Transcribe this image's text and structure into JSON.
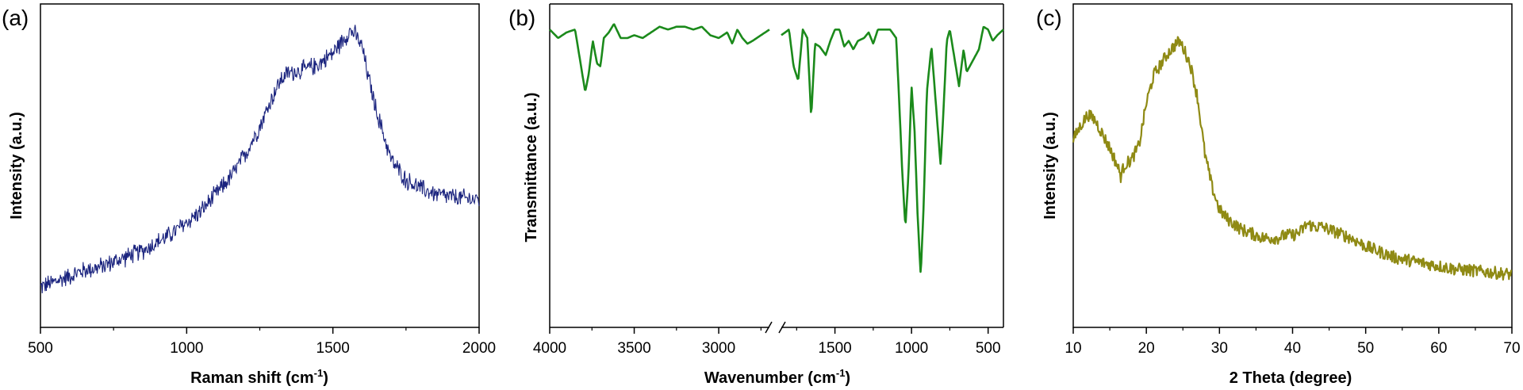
{
  "figure": {
    "background": "#ffffff",
    "panels": [
      "(a)",
      "(b)",
      "(c)"
    ]
  },
  "chart_data": [
    {
      "type": "line",
      "panel_label": "(a)",
      "title": "",
      "xlabel": "Raman shift (cm",
      "xlabel_sup": "-1",
      "xlabel_end": ")",
      "ylabel": "Intensity (a.u.)",
      "xlim": [
        500,
        2000
      ],
      "ylim": [
        0,
        10
      ],
      "x_ticks": [
        500,
        1000,
        1500,
        2000
      ],
      "x_tick_labels": [
        "500",
        "1000",
        "1500",
        "2000"
      ],
      "y_tick_labels": [],
      "grid": false,
      "legend": "none",
      "noise": 0.28,
      "series": [
        {
          "color": "#1a237e",
          "x": [
            500,
            550,
            600,
            650,
            700,
            750,
            800,
            850,
            900,
            950,
            1000,
            1050,
            1100,
            1150,
            1200,
            1250,
            1300,
            1325,
            1350,
            1400,
            1450,
            1500,
            1530,
            1560,
            1580,
            1600,
            1620,
            1650,
            1700,
            1750,
            1800,
            1850,
            1900,
            1950,
            2000
          ],
          "y": [
            0.3,
            0.5,
            0.7,
            0.9,
            1.0,
            1.2,
            1.4,
            1.6,
            1.9,
            2.2,
            2.6,
            3.0,
            3.6,
            4.2,
            5.0,
            6.0,
            7.2,
            7.7,
            7.9,
            8.0,
            8.2,
            8.6,
            9.0,
            9.4,
            9.2,
            8.8,
            7.8,
            6.5,
            4.8,
            4.1,
            3.8,
            3.6,
            3.5,
            3.45,
            3.4
          ]
        }
      ]
    },
    {
      "type": "line",
      "panel_label": "(b)",
      "title": "",
      "xlabel": "Wavenumber (cm",
      "xlabel_sup": "-1",
      "xlabel_end": ")",
      "ylabel": "Transmittance (a.u.)",
      "axis_break": true,
      "segments": [
        {
          "xlim": [
            4000,
            2700
          ],
          "ticks": [
            4000,
            3500,
            3000
          ],
          "tick_labels": [
            "4000",
            "3500",
            "3000"
          ]
        },
        {
          "xlim": [
            1850,
            400
          ],
          "ticks": [
            1500,
            1000,
            500
          ],
          "tick_labels": [
            "1500",
            "1000",
            "500"
          ]
        }
      ],
      "ylim": [
        0,
        10
      ],
      "y_tick_labels": [],
      "grid": false,
      "legend": "none",
      "series": [
        {
          "color": "#1b8a1b",
          "segment_points": [
            {
              "x": [
                4000,
                3950,
                3900,
                3850,
                3820,
                3790,
                3770,
                3745,
                3720,
                3700,
                3680,
                3650,
                3620,
                3580,
                3540,
                3500,
                3450,
                3400,
                3350,
                3300,
                3250,
                3200,
                3150,
                3100,
                3050,
                3000,
                2950,
                2920,
                2890,
                2860,
                2830,
                2800,
                2750,
                2700
              ],
              "y": [
                9.6,
                9.3,
                9.5,
                9.6,
                8.5,
                7.4,
                8.0,
                9.2,
                8.4,
                8.3,
                9.3,
                9.5,
                9.8,
                9.3,
                9.3,
                9.4,
                9.3,
                9.5,
                9.7,
                9.6,
                9.7,
                9.7,
                9.6,
                9.7,
                9.4,
                9.3,
                9.5,
                9.1,
                9.6,
                9.3,
                9.1,
                9.2,
                9.4,
                9.6
              ]
            },
            {
              "x": [
                1850,
                1800,
                1770,
                1740,
                1710,
                1680,
                1655,
                1630,
                1600,
                1560,
                1530,
                1500,
                1470,
                1440,
                1410,
                1380,
                1350,
                1310,
                1280,
                1250,
                1220,
                1180,
                1140,
                1100,
                1080,
                1060,
                1040,
                1020,
                1000,
                980,
                960,
                940,
                920,
                900,
                870,
                840,
                810,
                790,
                770,
                750,
                720,
                690,
                660,
                640,
                620,
                590,
                560,
                530,
                500,
                470,
                440,
                420,
                400
              ],
              "y": [
                9.4,
                9.6,
                8.3,
                7.8,
                9.6,
                9.3,
                6.5,
                9.1,
                9.0,
                8.7,
                9.2,
                9.6,
                9.6,
                9.0,
                9.2,
                8.9,
                9.2,
                9.3,
                9.5,
                9.1,
                9.6,
                9.6,
                9.6,
                9.3,
                7.0,
                4.5,
                2.6,
                4.5,
                7.6,
                6.0,
                3.0,
                0.9,
                3.5,
                7.4,
                9.0,
                6.9,
                4.8,
                6.9,
                9.2,
                9.6,
                8.6,
                7.6,
                8.9,
                8.1,
                8.3,
                8.6,
                8.9,
                9.7,
                9.6,
                9.2,
                9.4,
                9.5,
                9.6
              ]
            }
          ]
        }
      ]
    },
    {
      "type": "line",
      "panel_label": "(c)",
      "title": "",
      "xlabel": "2 Theta (degree)",
      "ylabel": "Intensity (a.u.)",
      "xlim": [
        10,
        70
      ],
      "ylim": [
        0,
        10
      ],
      "x_ticks": [
        10,
        20,
        30,
        40,
        50,
        60,
        70
      ],
      "x_tick_labels": [
        "10",
        "20",
        "30",
        "40",
        "50",
        "60",
        "70"
      ],
      "y_tick_labels": [],
      "grid": false,
      "legend": "none",
      "noise": 0.22,
      "series": [
        {
          "color": "#8f8a14",
          "x": [
            10,
            11,
            12,
            13,
            14,
            15,
            16,
            16.5,
            17,
            18,
            19,
            20,
            21,
            22,
            23,
            24,
            24.5,
            25,
            26,
            27,
            28,
            29,
            30,
            31,
            32,
            33,
            34,
            35,
            36,
            37,
            38,
            39,
            40,
            41,
            42,
            43,
            44,
            45,
            46,
            48,
            50,
            52,
            54,
            56,
            58,
            60,
            62,
            64,
            66,
            68,
            70
          ],
          "y": [
            5.5,
            6.0,
            6.4,
            6.2,
            5.7,
            5.2,
            4.6,
            4.2,
            4.6,
            4.8,
            5.3,
            6.8,
            7.8,
            8.2,
            8.6,
            8.9,
            9.0,
            8.8,
            8.2,
            7.0,
            5.0,
            3.8,
            3.0,
            2.7,
            2.5,
            2.3,
            2.2,
            2.1,
            2.0,
            2.0,
            2.0,
            2.1,
            2.1,
            2.2,
            2.5,
            2.4,
            2.4,
            2.3,
            2.2,
            2.0,
            1.7,
            1.5,
            1.3,
            1.2,
            1.1,
            1.0,
            0.9,
            0.85,
            0.8,
            0.75,
            0.7
          ]
        }
      ]
    }
  ]
}
